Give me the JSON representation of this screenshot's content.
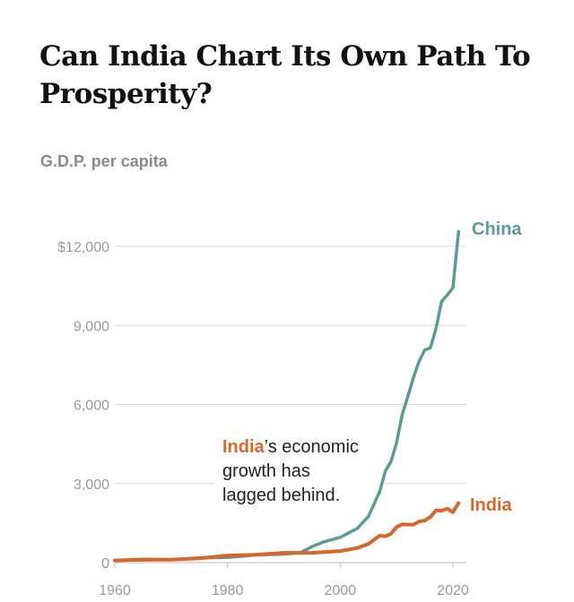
{
  "title": "Can India Chart Its Own Path To Prosperity?",
  "subtitle": "G.D.P. per capita",
  "chart_data": {
    "type": "line",
    "ylabel": "G.D.P. per capita",
    "xlim": [
      1960,
      2021
    ],
    "ylim": [
      0,
      12500
    ],
    "y_ticks": [
      {
        "value": 0,
        "label": "0"
      },
      {
        "value": 3000,
        "label": "3,000"
      },
      {
        "value": 6000,
        "label": "6,000"
      },
      {
        "value": 9000,
        "label": "9,000"
      },
      {
        "value": 12000,
        "label": "$12,000"
      }
    ],
    "x_ticks": [
      {
        "value": 1960,
        "label": "1960"
      },
      {
        "value": 1980,
        "label": "1980"
      },
      {
        "value": 2000,
        "label": "2000"
      },
      {
        "value": 2020,
        "label": "2020"
      }
    ],
    "grid": true,
    "legend": "direct labels at line ends",
    "series": [
      {
        "name": "China",
        "color": "#5b9b98",
        "x": [
          1960,
          1965,
          1970,
          1975,
          1980,
          1985,
          1990,
          1993,
          1995,
          1997,
          2000,
          2003,
          2005,
          2007,
          2008,
          2009,
          2010,
          2011,
          2012,
          2013,
          2014,
          2015,
          2016,
          2017,
          2018,
          2019,
          2020,
          2021
        ],
        "y": [
          90,
          100,
          110,
          180,
          195,
          290,
          320,
          380,
          610,
          780,
          960,
          1290,
          1750,
          2690,
          3470,
          3830,
          4550,
          5610,
          6300,
          7020,
          7640,
          8070,
          8150,
          8880,
          9910,
          10150,
          10430,
          12560
        ]
      },
      {
        "name": "India",
        "color": "#d9662a",
        "x": [
          1960,
          1965,
          1970,
          1975,
          1980,
          1985,
          1990,
          1995,
          2000,
          2003,
          2005,
          2007,
          2008,
          2009,
          2010,
          2011,
          2012,
          2013,
          2014,
          2015,
          2016,
          2017,
          2018,
          2019,
          2020,
          2021
        ],
        "y": [
          80,
          120,
          110,
          160,
          270,
          300,
          370,
          370,
          440,
          550,
          710,
          1020,
          1000,
          1090,
          1350,
          1450,
          1440,
          1440,
          1560,
          1590,
          1730,
          1980,
          1970,
          2050,
          1910,
          2260
        ]
      }
    ],
    "annotation": {
      "highlight": "India",
      "rest_line1": "’s economic",
      "line2": "growth has",
      "line3": "lagged behind."
    }
  }
}
